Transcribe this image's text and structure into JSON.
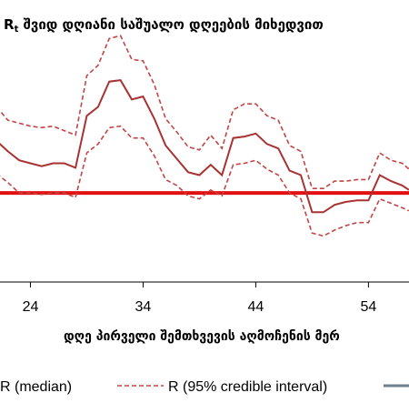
{
  "title_main": "R",
  "title_sub": "t",
  "title_rest": " შვიდ დღიანი საშუალო დღეების მიხედვით",
  "chart_data": {
    "type": "line",
    "title": "Rt შვიდ დღიანი საშუალო დღეების მიხედვით",
    "xlabel": "დღე პირველი შემთხვევის აღმოჩენის მერ",
    "ylabel": "",
    "x_ticks": [
      24,
      34,
      44,
      54
    ],
    "x_tick_labels": [
      "24",
      "34",
      "44",
      "54"
    ],
    "xlim": [
      21.3,
      57.6
    ],
    "ylim": [
      0.4,
      2.3
    ],
    "reference_line": 1.0,
    "colors": {
      "median": "#a83232",
      "ci": "#c24444",
      "reference": "#e21010",
      "extra": "#6f7e8c"
    },
    "series": [
      {
        "name": "R (median)",
        "style": "solid",
        "x": [
          21,
          22,
          23,
          24,
          25,
          26,
          27,
          28,
          29,
          30,
          31,
          32,
          33,
          34,
          35,
          36,
          37,
          38,
          39,
          40,
          41,
          42,
          43,
          44,
          45,
          46,
          47,
          48,
          49,
          50,
          51,
          52,
          53,
          54,
          55,
          56,
          57,
          57.6
        ],
        "y": [
          1.35,
          1.28,
          1.22,
          1.2,
          1.18,
          1.2,
          1.2,
          1.17,
          1.52,
          1.58,
          1.75,
          1.76,
          1.63,
          1.65,
          1.5,
          1.32,
          1.23,
          1.14,
          1.12,
          1.19,
          1.12,
          1.37,
          1.38,
          1.4,
          1.33,
          1.3,
          1.15,
          1.12,
          0.87,
          0.87,
          0.92,
          0.94,
          0.95,
          0.95,
          1.12,
          1.08,
          1.05,
          1.02
        ]
      },
      {
        "name": "R (95% credible interval)",
        "style": "dashed",
        "x": [
          21,
          22,
          23,
          24,
          25,
          26,
          27,
          28,
          29,
          30,
          31,
          32,
          33,
          34,
          35,
          36,
          37,
          38,
          39,
          40,
          41,
          42,
          43,
          44,
          45,
          46,
          47,
          48,
          49,
          50,
          51,
          52,
          53,
          54,
          55,
          56,
          57,
          57.6
        ],
        "y": [
          1.58,
          1.49,
          1.47,
          1.45,
          1.44,
          1.45,
          1.42,
          1.39,
          1.79,
          1.86,
          2.04,
          2.06,
          1.9,
          1.89,
          1.73,
          1.5,
          1.41,
          1.31,
          1.29,
          1.39,
          1.3,
          1.56,
          1.6,
          1.6,
          1.52,
          1.49,
          1.32,
          1.28,
          1.03,
          1.03,
          1.08,
          1.08,
          1.09,
          1.09,
          1.27,
          1.22,
          1.2,
          1.16
        ]
      },
      {
        "name": "R (95% credible interval)",
        "style": "dashed",
        "x": [
          21,
          22,
          23,
          24,
          25,
          26,
          27,
          28,
          29,
          30,
          31,
          32,
          33,
          34,
          35,
          36,
          37,
          38,
          39,
          40,
          41,
          42,
          43,
          44,
          45,
          46,
          47,
          48,
          49,
          50,
          51,
          52,
          53,
          54,
          55,
          56,
          57,
          57.6
        ],
        "y": [
          1.13,
          1.07,
          1.0,
          1.0,
          0.99,
          1.0,
          1.0,
          0.97,
          1.27,
          1.33,
          1.44,
          1.45,
          1.37,
          1.37,
          1.25,
          1.09,
          1.05,
          0.98,
          0.96,
          1.02,
          0.98,
          1.19,
          1.2,
          1.22,
          1.16,
          1.12,
          1.0,
          0.96,
          0.73,
          0.71,
          0.75,
          0.78,
          0.8,
          0.8,
          0.96,
          0.93,
          0.9,
          0.88
        ]
      }
    ]
  },
  "legend": {
    "median_label": "R (median)",
    "ci_label": "R (95% credible interval)"
  }
}
